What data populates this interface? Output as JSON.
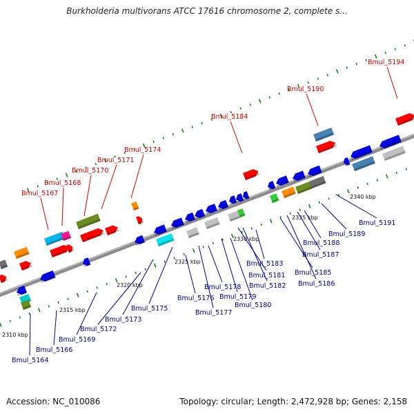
{
  "title": "Burkholderia multivorans ATCC 17616 chromosome 2, complete s...",
  "footer": {
    "accession": "Accession: NC_010086",
    "summary": "Topology: circular; Length: 2,472,928 bp; Genes: 2,158"
  },
  "colors": {
    "backbone": "#8c8c8c",
    "tick": "#1a7a1a",
    "label_top": "#cc0000",
    "label_bottom": "#00008b"
  },
  "ticks": [
    "2310 kbp",
    "2315 kbp",
    "2320 kbp",
    "2325 kbp",
    "2330 kbp",
    "2335 kbp",
    "2340 kbp"
  ],
  "labels_top": [
    "Bmul_5167",
    "Bmul_5168",
    "Bmul_5170",
    "Bmul_5171",
    "Bmul_5174",
    "Bmul_5184",
    "Bmul_5190",
    "Bmul_5194"
  ],
  "labels_bottom": [
    "Bmul_5164",
    "Bmul_5166",
    "Bmul_5169",
    "Bmul_5172",
    "Bmul_5173",
    "Bmul_5175",
    "Bmul_5176",
    "Bmul_5177",
    "Bmul_5178",
    "Bmul_5179",
    "Bmul_5180",
    "Bmul_5181",
    "Bmul_5182",
    "Bmul_5183",
    "Bmul_5185",
    "Bmul_5186",
    "Bmul_5187",
    "Bmul_5188",
    "Bmul_5189",
    "Bmul_5191"
  ]
}
